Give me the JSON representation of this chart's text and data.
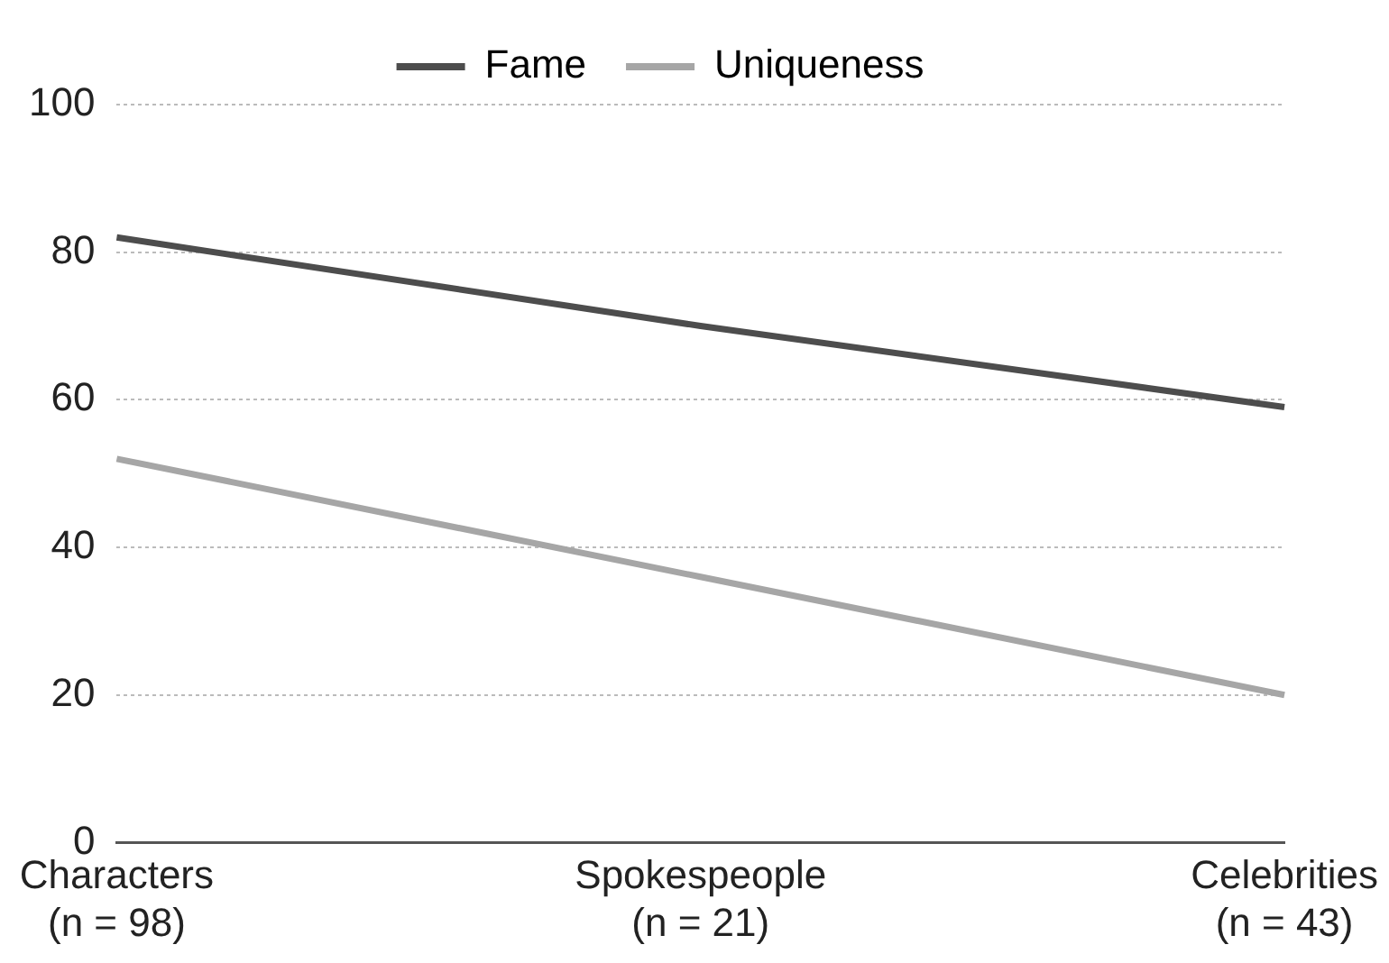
{
  "chart_data": {
    "type": "line",
    "categories": [
      "Characters\n(n = 98)",
      "Spokespeople\n(n = 21)",
      "Celebrities\n(n = 43)"
    ],
    "series": [
      {
        "name": "Fame",
        "color": "#4d4d4d",
        "values": [
          82,
          70,
          59
        ]
      },
      {
        "name": "Uniqueness",
        "color": "#a6a6a6",
        "values": [
          52,
          36,
          20
        ]
      }
    ],
    "ylim": [
      0,
      100
    ],
    "yticks": [
      0,
      20,
      40,
      60,
      80,
      100
    ],
    "grid": "y",
    "legend": "top",
    "marker": "none",
    "line_style": "solid"
  }
}
